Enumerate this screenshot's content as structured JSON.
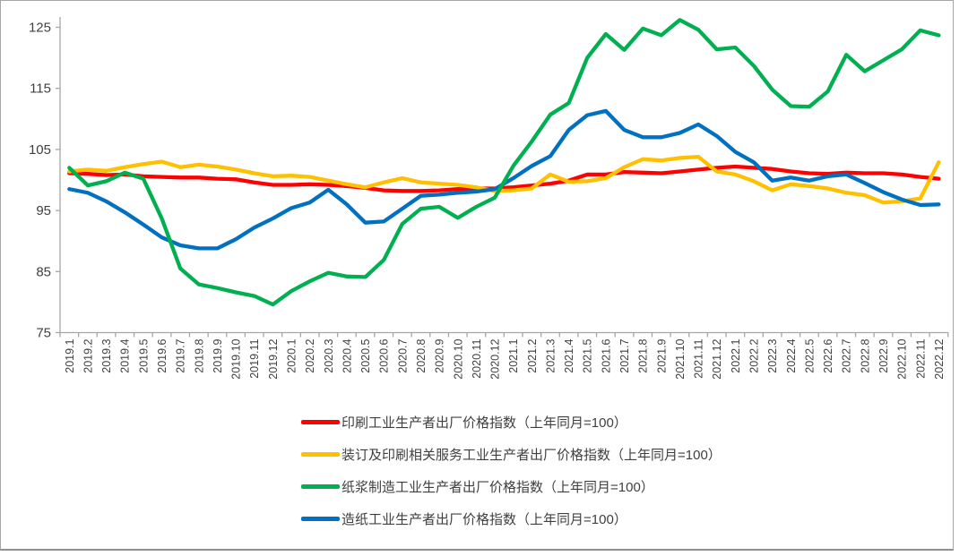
{
  "frame": {
    "background": "#ffffff",
    "border_color": "#a6a6a6",
    "axis_color": "#a6a6a6",
    "label_color": "#404040"
  },
  "chart_data": {
    "type": "line",
    "title": "",
    "xlabel": "",
    "ylabel": "",
    "ylim": [
      75,
      125
    ],
    "yticks": [
      75,
      85,
      95,
      105,
      115,
      125
    ],
    "grid": false,
    "legend_position": "bottom-left",
    "x": [
      "2019.1",
      "2019.2",
      "2019.3",
      "2019.4",
      "2019.5",
      "2019.6",
      "2019.7",
      "2019.8",
      "2019.9",
      "2019.10",
      "2019.11",
      "2019.12",
      "2020.1",
      "2020.2",
      "2020.3",
      "2020.4",
      "2020.5",
      "2020.6",
      "2020.7",
      "2020.8",
      "2020.9",
      "2020.10",
      "2020.11",
      "2020.12",
      "2021.1",
      "2021.2",
      "2021.3",
      "2021.4",
      "2021.5",
      "2021.6",
      "2021.7",
      "2021.8",
      "2021.9",
      "2021.10",
      "2021.11",
      "2021.12",
      "2022.1",
      "2022.2",
      "2022.3",
      "2022.4",
      "2022.5",
      "2022.6",
      "2022.7",
      "2022.8",
      "2022.9",
      "2022.10",
      "2022.11",
      "2022.12"
    ],
    "series": [
      {
        "name": "印刷工业生产者出厂价格指数（上年同月=100）",
        "color": "#ff0000",
        "values": [
          101.1,
          101.0,
          100.8,
          100.9,
          100.6,
          100.5,
          100.4,
          100.4,
          100.2,
          100.1,
          99.6,
          99.2,
          99.2,
          99.3,
          99.2,
          99.0,
          98.7,
          98.3,
          98.2,
          98.2,
          98.3,
          98.5,
          98.6,
          98.6,
          98.8,
          99.1,
          99.4,
          99.9,
          100.9,
          100.9,
          101.3,
          101.2,
          101.1,
          101.4,
          101.7,
          102.0,
          102.2,
          102.0,
          101.8,
          101.4,
          101.1,
          101.0,
          101.2,
          101.1,
          101.1,
          100.9,
          100.5,
          100.2
        ]
      },
      {
        "name": "装订及印刷相关服务工业生产者出厂价格指数（上年同月=100）",
        "color": "#ffc000",
        "values": [
          101.4,
          101.7,
          101.5,
          102.1,
          102.6,
          103.0,
          102.1,
          102.5,
          102.2,
          101.7,
          101.1,
          100.6,
          100.7,
          100.5,
          99.9,
          99.3,
          98.8,
          99.6,
          100.3,
          99.6,
          99.4,
          99.2,
          98.8,
          98.2,
          98.3,
          98.6,
          100.9,
          99.7,
          99.8,
          100.3,
          102.1,
          103.4,
          103.2,
          103.6,
          103.8,
          101.4,
          100.9,
          99.8,
          98.3,
          99.3,
          99.0,
          98.6,
          97.9,
          97.5,
          96.3,
          96.5,
          97.0,
          102.9
        ]
      },
      {
        "name": "纸浆制造工业生产者出厂价格指数（上年同月=100）",
        "color": "#00b050",
        "values": [
          102.0,
          99.1,
          99.8,
          101.2,
          100.2,
          93.7,
          85.5,
          82.9,
          82.3,
          81.6,
          81.0,
          79.6,
          81.8,
          83.4,
          84.8,
          84.2,
          84.1,
          86.9,
          92.8,
          95.3,
          95.6,
          93.8,
          95.6,
          97.1,
          102.3,
          106.3,
          110.7,
          112.6,
          120.0,
          123.9,
          121.3,
          124.8,
          123.7,
          126.2,
          124.6,
          121.4,
          121.7,
          118.7,
          114.8,
          112.1,
          112.0,
          114.5,
          120.5,
          117.8,
          119.6,
          121.4,
          124.5,
          123.7
        ]
      },
      {
        "name": "造纸工业生产者出厂价格指数（上年同月=100）",
        "color": "#0070c0",
        "values": [
          98.5,
          97.9,
          96.5,
          94.7,
          92.7,
          90.6,
          89.3,
          88.8,
          88.8,
          90.3,
          92.2,
          93.7,
          95.4,
          96.3,
          98.4,
          96.0,
          93.0,
          93.2,
          95.3,
          97.4,
          97.6,
          97.9,
          98.1,
          98.5,
          100.3,
          102.3,
          103.9,
          108.2,
          110.6,
          111.3,
          108.2,
          107.0,
          107.0,
          107.7,
          109.1,
          107.2,
          104.6,
          102.9,
          99.9,
          100.4,
          99.9,
          100.6,
          100.9,
          99.5,
          98.0,
          96.8,
          95.9,
          96.0
        ]
      }
    ]
  }
}
